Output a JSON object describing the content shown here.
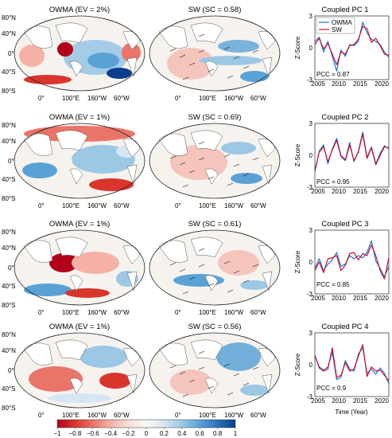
{
  "chart_data": [
    {
      "type": "heatmap",
      "title": "OWMA (EV = 2%)"
    },
    {
      "type": "heatmap",
      "title": "SW (SC = 0.58)"
    },
    {
      "type": "line",
      "title": "Coupled PC 1",
      "ylabel": "Z-Score",
      "xlabel": "",
      "xlim": [
        2005,
        2022
      ],
      "ylim": [
        -3,
        3
      ],
      "x_ticks": [
        "2005",
        "2010",
        "2015",
        "2020"
      ],
      "y_ticks": [
        "-3",
        "0",
        "3"
      ],
      "legend": "top-left",
      "annotation": "PCC = 0.87",
      "x": [
        2005.0,
        2006.0,
        2007.0,
        2008.0,
        2009.0,
        2010.0,
        2011.0,
        2012.0,
        2013.0,
        2014.0,
        2015.0,
        2016.0,
        2017.0,
        2018.0,
        2019.0,
        2020.0,
        2021.0,
        2022.0
      ],
      "series": [
        {
          "name": "OWMA",
          "color": "#1f77d0",
          "values": [
            0.6,
            1.0,
            -0.4,
            0.6,
            -0.8,
            -2.2,
            -0.2,
            -0.8,
            0.3,
            0.2,
            0.6,
            2.4,
            1.4,
            0.8,
            0.6,
            0.3,
            -0.4,
            -0.9
          ]
        },
        {
          "name": "SW",
          "color": "#c8102e",
          "values": [
            0.3,
            0.9,
            -0.1,
            0.4,
            -0.6,
            -1.6,
            -0.4,
            -0.6,
            0.2,
            0.3,
            0.8,
            2.0,
            1.8,
            0.5,
            0.9,
            0.2,
            -0.6,
            -0.7
          ]
        }
      ]
    },
    {
      "type": "heatmap",
      "title": "OWMA (EV = 1%)"
    },
    {
      "type": "heatmap",
      "title": "SW (SC = 0.69)"
    },
    {
      "type": "line",
      "title": "Coupled PC 2",
      "ylabel": "Z-Score",
      "xlabel": "",
      "xlim": [
        2005,
        2022
      ],
      "ylim": [
        -3,
        3
      ],
      "x_ticks": [
        "2005",
        "2010",
        "2015",
        "2020"
      ],
      "y_ticks": [
        "-3",
        "0",
        "3"
      ],
      "annotation": "PCC = 0.95",
      "x": [
        2005.0,
        2006.0,
        2007.0,
        2008.0,
        2009.0,
        2010.0,
        2011.0,
        2012.0,
        2013.0,
        2014.0,
        2015.0,
        2016.0,
        2017.0,
        2018.0,
        2019.0,
        2020.0,
        2021.0,
        2022.0
      ],
      "series": [
        {
          "name": "OWMA",
          "color": "#1f77d0",
          "values": [
            -1.6,
            0.4,
            1.0,
            -0.8,
            0.6,
            1.6,
            0.0,
            -0.4,
            1.2,
            -0.6,
            0.4,
            2.2,
            -0.2,
            0.8,
            -0.8,
            0.2,
            0.9,
            0.6
          ]
        },
        {
          "name": "SW",
          "color": "#c8102e",
          "values": [
            -1.4,
            0.3,
            0.8,
            -0.6,
            0.5,
            1.4,
            -0.1,
            -0.5,
            1.0,
            -0.5,
            0.3,
            2.0,
            -0.3,
            0.7,
            -0.9,
            0.0,
            0.8,
            0.7
          ]
        }
      ]
    },
    {
      "type": "heatmap",
      "title": "OWMA (EV = 1%)"
    },
    {
      "type": "heatmap",
      "title": "SW (SC = 0.61)"
    },
    {
      "type": "line",
      "title": "Coupled PC 3",
      "ylabel": "Z-Score",
      "xlabel": "",
      "xlim": [
        2005,
        2022
      ],
      "ylim": [
        -3,
        3
      ],
      "x_ticks": [
        "2005",
        "2010",
        "2015",
        "2020"
      ],
      "y_ticks": [
        "-3",
        "0",
        "3"
      ],
      "annotation": "PCC = 0.85",
      "x": [
        2005.0,
        2006.0,
        2007.0,
        2008.0,
        2009.0,
        2010.0,
        2011.0,
        2012.0,
        2013.0,
        2014.0,
        2015.0,
        2016.0,
        2017.0,
        2018.0,
        2019.0,
        2020.0,
        2021.0,
        2022.0
      ],
      "series": [
        {
          "name": "OWMA",
          "color": "#1f77d0",
          "values": [
            -0.6,
            0.3,
            -0.8,
            -0.2,
            0.2,
            0.9,
            -0.4,
            -0.2,
            0.6,
            0.3,
            0.6,
            0.4,
            0.9,
            2.0,
            0.1,
            -0.6,
            -1.4,
            -0.4
          ]
        },
        {
          "name": "SW",
          "color": "#c8102e",
          "values": [
            -0.8,
            0.0,
            -1.0,
            0.3,
            0.4,
            0.6,
            -0.8,
            -0.3,
            0.8,
            0.9,
            0.2,
            0.8,
            0.6,
            1.6,
            0.6,
            -0.8,
            -1.6,
            0.4
          ]
        }
      ]
    },
    {
      "type": "heatmap",
      "title": "OWMA (EV = 1%)"
    },
    {
      "type": "heatmap",
      "title": "SW (SC = 0.56)"
    },
    {
      "type": "line",
      "title": "Coupled PC 4",
      "ylabel": "Z-Score",
      "xlabel": "Time (Year)",
      "xlim": [
        2005,
        2022
      ],
      "ylim": [
        -3,
        3
      ],
      "x_ticks": [
        "2005",
        "2010",
        "2015",
        "2020"
      ],
      "y_ticks": [
        "-3",
        "0",
        "3"
      ],
      "annotation": "PCC = 0.9",
      "x": [
        2005.0,
        2006.0,
        2007.0,
        2008.0,
        2009.0,
        2010.0,
        2011.0,
        2012.0,
        2013.0,
        2014.0,
        2015.0,
        2016.0,
        2017.0,
        2018.0,
        2019.0,
        2020.0,
        2021.0,
        2022.0
      ],
      "series": [
        {
          "name": "OWMA",
          "color": "#1f77d0",
          "values": [
            0.8,
            -0.2,
            -0.5,
            -0.2,
            1.2,
            -1.4,
            -1.2,
            0.4,
            -0.4,
            -0.6,
            1.0,
            1.6,
            -0.8,
            -0.4,
            -0.9,
            -0.3,
            -0.8,
            -1.8
          ]
        },
        {
          "name": "SW",
          "color": "#c8102e",
          "values": [
            0.9,
            -0.3,
            -0.6,
            -0.4,
            1.6,
            -1.2,
            -1.0,
            0.2,
            -0.6,
            -0.4,
            0.8,
            1.9,
            -1.1,
            -0.2,
            -0.6,
            -0.5,
            -1.0,
            -1.5
          ]
        }
      ]
    }
  ],
  "map_axes": {
    "lat_labels": [
      "80°N",
      "40°N",
      "0°",
      "40°S",
      "80°S"
    ],
    "lon_labels": [
      "0°",
      "100°E",
      "160°W",
      "60°W"
    ]
  },
  "colorbar": {
    "ticks": [
      "−1",
      "−0.8",
      "−0.6",
      "−0.4",
      "−0.2",
      "0",
      "0.2",
      "0.4",
      "0.6",
      "0.8",
      "1"
    ],
    "min": -1,
    "max": 1,
    "colors": [
      "#b2001a",
      "#d9352d",
      "#ea7468",
      "#f5b1a6",
      "#fbe0d9",
      "#f8f8f8",
      "#d6e6f3",
      "#9cc8e6",
      "#5aa2d6",
      "#2a72bb",
      "#0a3d8c"
    ]
  }
}
